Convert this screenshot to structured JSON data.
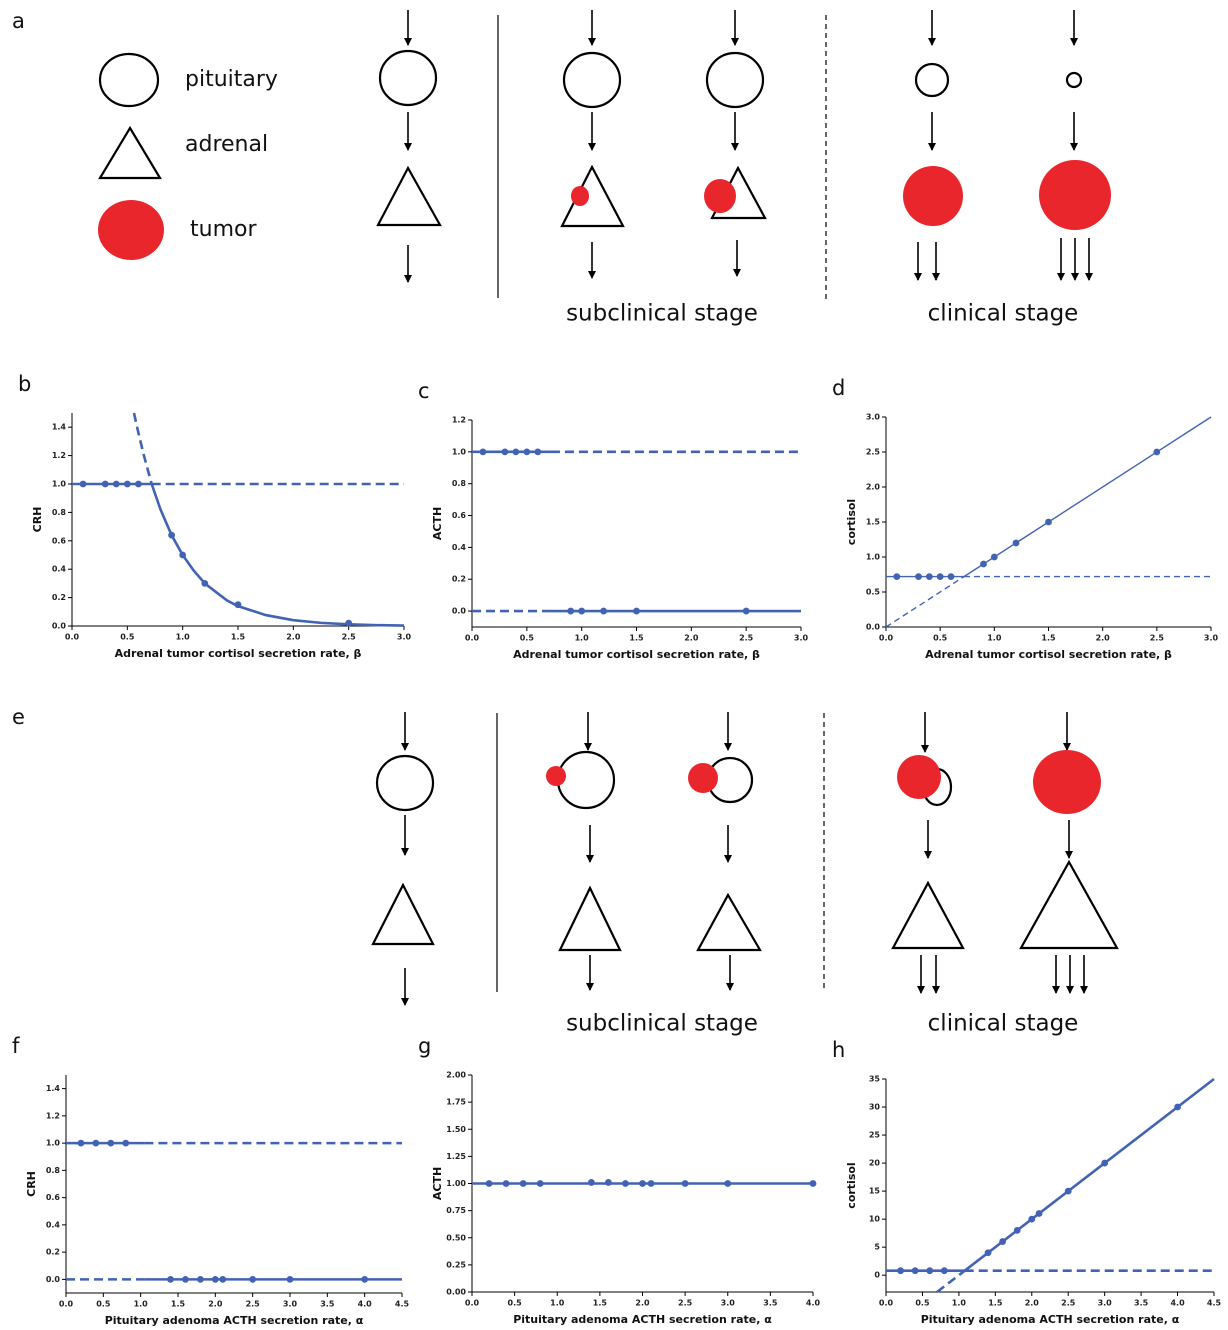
{
  "diagram_a": {
    "label": "a",
    "legend": [
      "pituitary",
      "adrenal",
      "tumor"
    ],
    "stages": [
      "subclinical stage",
      "clinical stage"
    ]
  },
  "diagram_e": {
    "label": "e",
    "stages": [
      "subclinical stage",
      "clinical stage"
    ]
  },
  "chart_data": [
    {
      "type": "line",
      "panel": "b",
      "ylabel": "CRH",
      "xlabel": "Adrenal tumor cortisol secretion rate, β",
      "xlim": [
        0,
        3
      ],
      "ylim": [
        0,
        1.5
      ],
      "xticks": [
        {
          "value": 0,
          "label": "0.0"
        },
        0.5,
        {
          "value": 1,
          "label": "1.0"
        },
        1.5,
        {
          "value": 2,
          "label": "2.0"
        },
        2.5,
        {
          "value": 3,
          "label": "3.0"
        }
      ],
      "yticks": [
        {
          "value": 0,
          "label": "0.0"
        },
        0.2,
        0.4,
        0.6,
        0.8,
        {
          "value": 1,
          "label": "1.0"
        },
        1.2,
        1.4
      ],
      "series": [
        {
          "color": "#4262b4",
          "style": "solid",
          "marker": false,
          "x": [
            0,
            0.72
          ],
          "values": [
            1,
            1
          ]
        },
        {
          "color": "#4262b4",
          "style": "dashed",
          "marker": false,
          "x": [
            0.72,
            3
          ],
          "values": [
            1,
            1
          ]
        },
        {
          "color": "#4262b4",
          "style": "dashed",
          "marker": false,
          "x": [
            0.56,
            0.6,
            0.65,
            0.72
          ],
          "values": [
            1.5,
            1.36,
            1.2,
            1
          ]
        },
        {
          "color": "#4262b4",
          "style": "solid",
          "marker": false,
          "x": [
            0.72,
            0.8,
            0.9,
            1,
            1.1,
            1.2,
            1.3,
            1.4,
            1.5,
            1.75,
            2,
            2.25,
            2.5,
            2.75,
            3
          ],
          "values": [
            1,
            0.82,
            0.64,
            0.5,
            0.39,
            0.3,
            0.24,
            0.18,
            0.14,
            0.077,
            0.041,
            0.022,
            0.012,
            0.006,
            0.003
          ]
        },
        {
          "color": "#4262b4",
          "style": "none",
          "marker": true,
          "x": [
            0.1,
            0.3,
            0.4,
            0.5,
            0.6,
            0.9,
            1,
            1.2,
            1.5,
            2.5
          ],
          "values": [
            1,
            1,
            1,
            1,
            1,
            0.64,
            0.5,
            0.3,
            0.15,
            0.02
          ]
        }
      ]
    },
    {
      "type": "line",
      "panel": "c",
      "ylabel": "ACTH",
      "xlabel": "Adrenal tumor cortisol secretion rate, β",
      "xlim": [
        0,
        3
      ],
      "ylim": [
        -0.1,
        1.2
      ],
      "xticks": [
        {
          "value": 0,
          "label": "0.0"
        },
        0.5,
        {
          "value": 1,
          "label": "1.0"
        },
        1.5,
        {
          "value": 2,
          "label": "2.0"
        },
        2.5,
        {
          "value": 3,
          "label": "3.0"
        }
      ],
      "yticks": [
        {
          "value": 0,
          "label": "0.0"
        },
        0.2,
        0.4,
        0.6,
        0.8,
        {
          "value": 1,
          "label": "1.0"
        },
        1.2
      ],
      "series": [
        {
          "color": "#4262b4",
          "style": "solid",
          "marker": false,
          "x": [
            0,
            0.72
          ],
          "values": [
            1,
            1
          ]
        },
        {
          "color": "#4262b4",
          "style": "dashed",
          "marker": false,
          "x": [
            0.72,
            3
          ],
          "values": [
            1,
            1
          ]
        },
        {
          "color": "#4262b4",
          "style": "dashed",
          "marker": false,
          "x": [
            0,
            0.72
          ],
          "values": [
            0,
            0
          ]
        },
        {
          "color": "#4262b4",
          "style": "solid",
          "marker": false,
          "x": [
            0.72,
            3
          ],
          "values": [
            0,
            0
          ]
        },
        {
          "color": "#4262b4",
          "style": "none",
          "marker": true,
          "x": [
            0.1,
            0.3,
            0.4,
            0.5,
            0.6,
            0.9,
            1,
            1.2,
            1.5,
            2.5
          ],
          "values": [
            1,
            1,
            1,
            1,
            1,
            0,
            0,
            0,
            0,
            0
          ]
        }
      ]
    },
    {
      "type": "line",
      "panel": "d",
      "ylabel": "cortisol",
      "xlabel": "Adrenal tumor cortisol secretion rate, β",
      "xlim": [
        0,
        3
      ],
      "ylim": [
        0,
        3
      ],
      "xticks": [
        {
          "value": 0,
          "label": "0.0"
        },
        0.5,
        {
          "value": 1,
          "label": "1.0"
        },
        1.5,
        {
          "value": 2,
          "label": "2.0"
        },
        2.5,
        {
          "value": 3,
          "label": "3.0"
        }
      ],
      "yticks": [
        {
          "value": 0,
          "label": "0.0"
        },
        0.5,
        {
          "value": 1,
          "label": "1.0"
        },
        1.5,
        {
          "value": 2,
          "label": "2.0"
        },
        2.5,
        {
          "value": 3,
          "label": "3.0"
        }
      ],
      "series": [
        {
          "color": "#4262b4",
          "style": "solid",
          "marker": false,
          "x": [
            0,
            0.72
          ],
          "values": [
            0.72,
            0.72
          ]
        },
        {
          "color": "#4262b4",
          "style": "dashed",
          "marker": false,
          "x": [
            0.72,
            3
          ],
          "values": [
            0.72,
            0.72
          ]
        },
        {
          "color": "#4262b4",
          "style": "dashed",
          "marker": false,
          "x": [
            0,
            0.72
          ],
          "values": [
            0,
            0.72
          ]
        },
        {
          "color": "#4262b4",
          "style": "solid",
          "marker": false,
          "x": [
            0.72,
            3
          ],
          "values": [
            0.72,
            3
          ]
        },
        {
          "color": "#4262b4",
          "style": "none",
          "marker": true,
          "x": [
            0.1,
            0.3,
            0.4,
            0.5,
            0.6,
            0.9,
            1,
            1.2,
            1.5,
            2.5
          ],
          "values": [
            0.72,
            0.72,
            0.72,
            0.72,
            0.72,
            0.9,
            1,
            1.2,
            1.5,
            2.5
          ]
        }
      ]
    },
    {
      "type": "line",
      "panel": "f",
      "ylabel": "CRH",
      "xlabel": "Pituitary adenoma ACTH secretion rate, α",
      "xlim": [
        0,
        4.5
      ],
      "ylim": [
        -0.1,
        1.5
      ],
      "xticks": [
        {
          "value": 0,
          "label": "0.0"
        },
        0.5,
        {
          "value": 1,
          "label": "1.0"
        },
        1.5,
        {
          "value": 2,
          "label": "2.0"
        },
        2.5,
        {
          "value": 3,
          "label": "3.0"
        },
        3.5,
        {
          "value": 4,
          "label": "4.0"
        },
        4.5
      ],
      "yticks": [
        {
          "value": 0,
          "label": "0.0"
        },
        0.2,
        0.4,
        0.6,
        0.8,
        {
          "value": 1,
          "label": "1.0"
        },
        1.2,
        1.4
      ],
      "series": [
        {
          "color": "#4262b4",
          "style": "solid",
          "marker": false,
          "x": [
            0,
            1.05
          ],
          "values": [
            1,
            1
          ]
        },
        {
          "color": "#4262b4",
          "style": "dashed",
          "marker": false,
          "x": [
            1.05,
            4.5
          ],
          "values": [
            1,
            1
          ]
        },
        {
          "color": "#4262b4",
          "style": "dashed",
          "marker": false,
          "x": [
            0,
            1.05
          ],
          "values": [
            0,
            0
          ]
        },
        {
          "color": "#4262b4",
          "style": "solid",
          "marker": false,
          "x": [
            1.05,
            4.5
          ],
          "values": [
            0,
            0
          ]
        },
        {
          "color": "#4262b4",
          "style": "none",
          "marker": true,
          "x": [
            0.2,
            0.4,
            0.6,
            0.8,
            1.4,
            1.6,
            1.8,
            2,
            2.1,
            2.5,
            3,
            4
          ],
          "values": [
            1,
            1,
            1,
            1,
            0,
            0,
            0,
            0,
            0,
            0,
            0,
            0
          ]
        }
      ]
    },
    {
      "type": "line",
      "panel": "g",
      "ylabel": "ACTH",
      "xlabel": "Pituitary adenoma ACTH secretion rate, α",
      "xlim": [
        0,
        4
      ],
      "ylim": [
        0,
        2
      ],
      "xticks": [
        {
          "value": 0,
          "label": "0.0"
        },
        0.5,
        {
          "value": 1,
          "label": "1.0"
        },
        1.5,
        {
          "value": 2,
          "label": "2.0"
        },
        2.5,
        {
          "value": 3,
          "label": "3.0"
        },
        3.5,
        {
          "value": 4,
          "label": "4.0"
        }
      ],
      "yticks": [
        {
          "value": 0,
          "label": "0.00"
        },
        0.25,
        {
          "value": 0.5,
          "label": "0.50"
        },
        0.75,
        {
          "value": 1,
          "label": "1.00"
        },
        1.25,
        {
          "value": 1.5,
          "label": "1.50"
        },
        1.75,
        {
          "value": 2,
          "label": "2.00"
        }
      ],
      "series": [
        {
          "color": "#4262b4",
          "style": "solid",
          "marker": false,
          "x": [
            0,
            4
          ],
          "values": [
            1,
            1
          ]
        },
        {
          "color": "#4262b4",
          "style": "none",
          "marker": true,
          "x": [
            0.2,
            0.4,
            0.6,
            0.8,
            1.4,
            1.6,
            1.8,
            2,
            2.1,
            2.5,
            3,
            4
          ],
          "values": [
            1,
            1,
            1,
            1,
            1.01,
            1.01,
            1,
            1,
            1,
            1,
            1,
            1
          ]
        }
      ]
    },
    {
      "type": "line",
      "panel": "h",
      "ylabel": "cortisol",
      "xlabel": "Pituitary adenoma ACTH secretion rate, α",
      "xlim": [
        0,
        4.5
      ],
      "ylim": [
        -3,
        35
      ],
      "xticks": [
        {
          "value": 0,
          "label": "0.0"
        },
        0.5,
        {
          "value": 1,
          "label": "1.0"
        },
        1.5,
        {
          "value": 2,
          "label": "2.0"
        },
        2.5,
        {
          "value": 3,
          "label": "3.0"
        },
        3.5,
        {
          "value": 4,
          "label": "4.0"
        },
        4.5
      ],
      "yticks": [
        0,
        5,
        10,
        15,
        20,
        25,
        30,
        35
      ],
      "series": [
        {
          "color": "#4262b4",
          "style": "solid",
          "marker": false,
          "x": [
            0,
            1.08
          ],
          "values": [
            0.8,
            0.8
          ]
        },
        {
          "color": "#4262b4",
          "style": "dashed",
          "marker": false,
          "x": [
            1.08,
            4.5
          ],
          "values": [
            0.8,
            0.8
          ]
        },
        {
          "color": "#4262b4",
          "style": "dashed",
          "marker": false,
          "x": [
            0.7,
            1.08
          ],
          "values": [
            -3,
            0.8
          ]
        },
        {
          "color": "#4262b4",
          "style": "solid",
          "marker": false,
          "x": [
            1.08,
            4.5
          ],
          "values": [
            0.8,
            35
          ]
        },
        {
          "color": "#4262b4",
          "style": "none",
          "marker": true,
          "x": [
            0.2,
            0.4,
            0.6,
            0.8,
            1.4,
            1.6,
            1.8,
            2,
            2.1,
            2.5,
            3,
            4
          ],
          "values": [
            0.8,
            0.8,
            0.8,
            0.8,
            4,
            6,
            8,
            10,
            11,
            15,
            20,
            30
          ]
        }
      ]
    }
  ]
}
